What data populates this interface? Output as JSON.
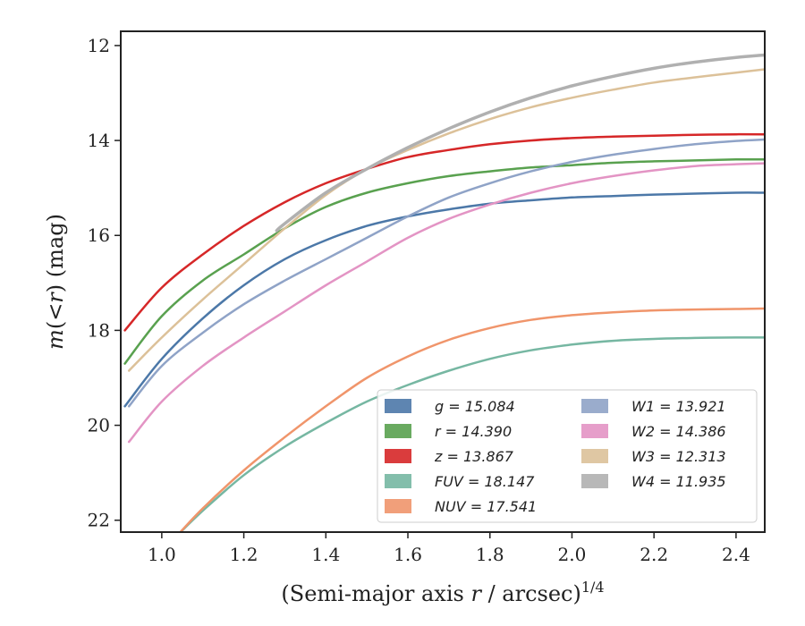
{
  "chart_data": {
    "type": "line",
    "xlabel": "(Semi-major axis r / arcsec)^{1/4}",
    "xlabel_parts": {
      "pre": "(Semi-major axis ",
      "var": "r",
      "post": " / arcsec)",
      "sup": "1/4"
    },
    "ylabel": "m(<r) (mag)",
    "ylabel_parts": {
      "var": "m",
      "mid": "(<",
      "var2": "r",
      "post": ") (mag)"
    },
    "xlim": [
      0.9,
      2.47
    ],
    "ylim": [
      22.25,
      11.7
    ],
    "y_inverted": true,
    "x_ticks": [
      1.0,
      1.2,
      1.4,
      1.6,
      1.8,
      2.0,
      2.2,
      2.4
    ],
    "x_tick_labels": [
      "1.0",
      "1.2",
      "1.4",
      "1.6",
      "1.8",
      "2.0",
      "2.2",
      "2.4"
    ],
    "y_ticks": [
      12,
      14,
      16,
      18,
      20,
      22
    ],
    "y_tick_labels": [
      "12",
      "14",
      "16",
      "18",
      "20",
      "22"
    ],
    "grid": false,
    "legend_position": "lower-right",
    "series": [
      {
        "name": "g",
        "label": "g = 15.084",
        "color": "#4c78a8",
        "x": [
          0.91,
          1.0,
          1.1,
          1.2,
          1.3,
          1.4,
          1.5,
          1.6,
          1.7,
          1.8,
          1.9,
          2.0,
          2.1,
          2.2,
          2.3,
          2.4,
          2.47
        ],
        "y": [
          19.6,
          18.6,
          17.75,
          17.05,
          16.5,
          16.1,
          15.8,
          15.6,
          15.45,
          15.33,
          15.26,
          15.2,
          15.17,
          15.14,
          15.12,
          15.1,
          15.1
        ]
      },
      {
        "name": "r",
        "label": "r = 14.390",
        "color": "#59a14f",
        "x": [
          0.91,
          1.0,
          1.1,
          1.2,
          1.3,
          1.4,
          1.5,
          1.6,
          1.7,
          1.8,
          1.9,
          2.0,
          2.1,
          2.2,
          2.3,
          2.4,
          2.47
        ],
        "y": [
          18.7,
          17.7,
          16.95,
          16.4,
          15.85,
          15.4,
          15.1,
          14.9,
          14.75,
          14.65,
          14.57,
          14.52,
          14.47,
          14.44,
          14.42,
          14.4,
          14.4
        ]
      },
      {
        "name": "z",
        "label": "z = 13.867",
        "color": "#d62728",
        "x": [
          0.91,
          1.0,
          1.1,
          1.2,
          1.3,
          1.4,
          1.5,
          1.6,
          1.7,
          1.8,
          1.9,
          2.0,
          2.1,
          2.2,
          2.3,
          2.4,
          2.47
        ],
        "y": [
          18.0,
          17.1,
          16.4,
          15.8,
          15.3,
          14.9,
          14.6,
          14.35,
          14.2,
          14.08,
          14.0,
          13.95,
          13.92,
          13.9,
          13.88,
          13.87,
          13.87
        ]
      },
      {
        "name": "FUV",
        "label": "FUV = 18.147",
        "color": "#76b7a2",
        "x": [
          1.04,
          1.1,
          1.2,
          1.3,
          1.4,
          1.5,
          1.6,
          1.7,
          1.8,
          1.9,
          2.0,
          2.1,
          2.2,
          2.3,
          2.4,
          2.47
        ],
        "y": [
          22.3,
          21.8,
          21.05,
          20.45,
          19.95,
          19.5,
          19.15,
          18.85,
          18.6,
          18.42,
          18.3,
          18.22,
          18.18,
          18.16,
          18.15,
          18.15
        ]
      },
      {
        "name": "NUV",
        "label": "NUV = 17.541",
        "color": "#f0956b",
        "x": [
          1.04,
          1.1,
          1.2,
          1.3,
          1.4,
          1.5,
          1.6,
          1.7,
          1.8,
          1.9,
          2.0,
          2.1,
          2.2,
          2.3,
          2.4,
          2.47
        ],
        "y": [
          22.3,
          21.75,
          20.95,
          20.25,
          19.6,
          19.0,
          18.55,
          18.2,
          17.95,
          17.78,
          17.68,
          17.62,
          17.58,
          17.56,
          17.55,
          17.54
        ]
      },
      {
        "name": "W1",
        "label": "W1 = 13.921",
        "color": "#8fa3c7",
        "x": [
          0.92,
          1.0,
          1.1,
          1.2,
          1.3,
          1.4,
          1.5,
          1.6,
          1.7,
          1.8,
          1.9,
          2.0,
          2.1,
          2.2,
          2.3,
          2.4,
          2.47
        ],
        "y": [
          19.6,
          18.75,
          18.05,
          17.45,
          16.95,
          16.5,
          16.05,
          15.6,
          15.2,
          14.9,
          14.65,
          14.45,
          14.3,
          14.18,
          14.08,
          14.01,
          13.98
        ]
      },
      {
        "name": "W2",
        "label": "W2 = 14.386",
        "color": "#e394c4",
        "x": [
          0.92,
          1.0,
          1.1,
          1.2,
          1.3,
          1.4,
          1.5,
          1.6,
          1.7,
          1.8,
          1.9,
          2.0,
          2.1,
          2.2,
          2.3,
          2.4,
          2.47
        ],
        "y": [
          20.35,
          19.5,
          18.75,
          18.15,
          17.6,
          17.05,
          16.55,
          16.05,
          15.65,
          15.35,
          15.1,
          14.9,
          14.75,
          14.63,
          14.54,
          14.5,
          14.48
        ]
      },
      {
        "name": "W3",
        "label": "W3 = 12.313",
        "color": "#dcc199",
        "x": [
          0.92,
          1.0,
          1.1,
          1.2,
          1.3,
          1.4,
          1.5,
          1.6,
          1.7,
          1.8,
          1.9,
          2.0,
          2.1,
          2.2,
          2.3,
          2.4,
          2.47
        ],
        "y": [
          18.85,
          18.15,
          17.35,
          16.6,
          15.85,
          15.15,
          14.6,
          14.2,
          13.85,
          13.55,
          13.3,
          13.1,
          12.93,
          12.78,
          12.67,
          12.57,
          12.5
        ]
      },
      {
        "name": "W4",
        "label": "W4 = 11.935",
        "color": "#b0b0b0",
        "x": [
          1.28,
          1.3,
          1.4,
          1.5,
          1.6,
          1.7,
          1.8,
          1.9,
          2.0,
          2.1,
          2.2,
          2.3,
          2.4,
          2.47
        ],
        "y": [
          15.9,
          15.75,
          15.1,
          14.6,
          14.15,
          13.75,
          13.4,
          13.1,
          12.85,
          12.65,
          12.48,
          12.35,
          12.25,
          12.2
        ]
      }
    ],
    "legend_columns": [
      [
        "g",
        "r",
        "z",
        "FUV",
        "NUV"
      ],
      [
        "W1",
        "W2",
        "W3",
        "W4"
      ]
    ]
  }
}
